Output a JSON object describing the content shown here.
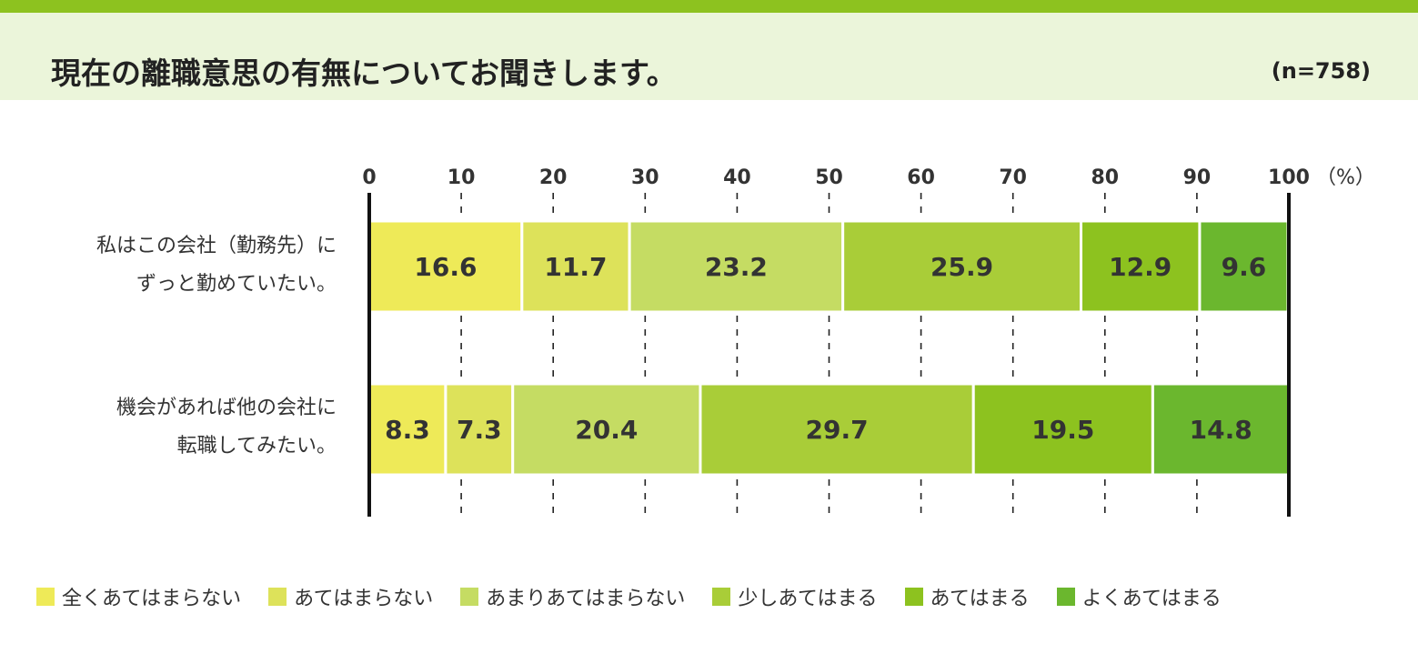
{
  "header": {
    "title": "現在の離職意思の有無についてお聞きします。",
    "n_label": "(n=758)"
  },
  "chart_data": {
    "type": "bar",
    "orientation": "horizontal",
    "stacked": true,
    "title": "現在の離職意思の有無についてお聞きします。",
    "sample_size": "(n=758)",
    "unit_label": "（%）",
    "xlim": [
      0,
      100
    ],
    "x_ticks": [
      0,
      10,
      20,
      30,
      40,
      50,
      60,
      70,
      80,
      90,
      100
    ],
    "grid": "dashed vertical",
    "legend_position": "bottom",
    "categories": [
      [
        "私はこの会社（勤務先）に",
        "ずっと勤めていたい。"
      ],
      [
        "機会があれば他の会社に",
        "転職してみたい。"
      ]
    ],
    "series": [
      {
        "name": "全くあてはまらない",
        "color": "#eeea58",
        "values": [
          16.6,
          8.3
        ]
      },
      {
        "name": "あてはまらない",
        "color": "#dde25a",
        "values": [
          11.7,
          7.3
        ]
      },
      {
        "name": "あまりあてはまらない",
        "color": "#c5dc63",
        "values": [
          23.2,
          20.4
        ]
      },
      {
        "name": "少しあてはまる",
        "color": "#a9cd38",
        "values": [
          25.9,
          29.7
        ]
      },
      {
        "name": "あてはまる",
        "color": "#8dc21f",
        "values": [
          12.9,
          19.5
        ]
      },
      {
        "name": "よくあてはまる",
        "color": "#6bb72e",
        "values": [
          9.6,
          14.8
        ]
      }
    ]
  }
}
